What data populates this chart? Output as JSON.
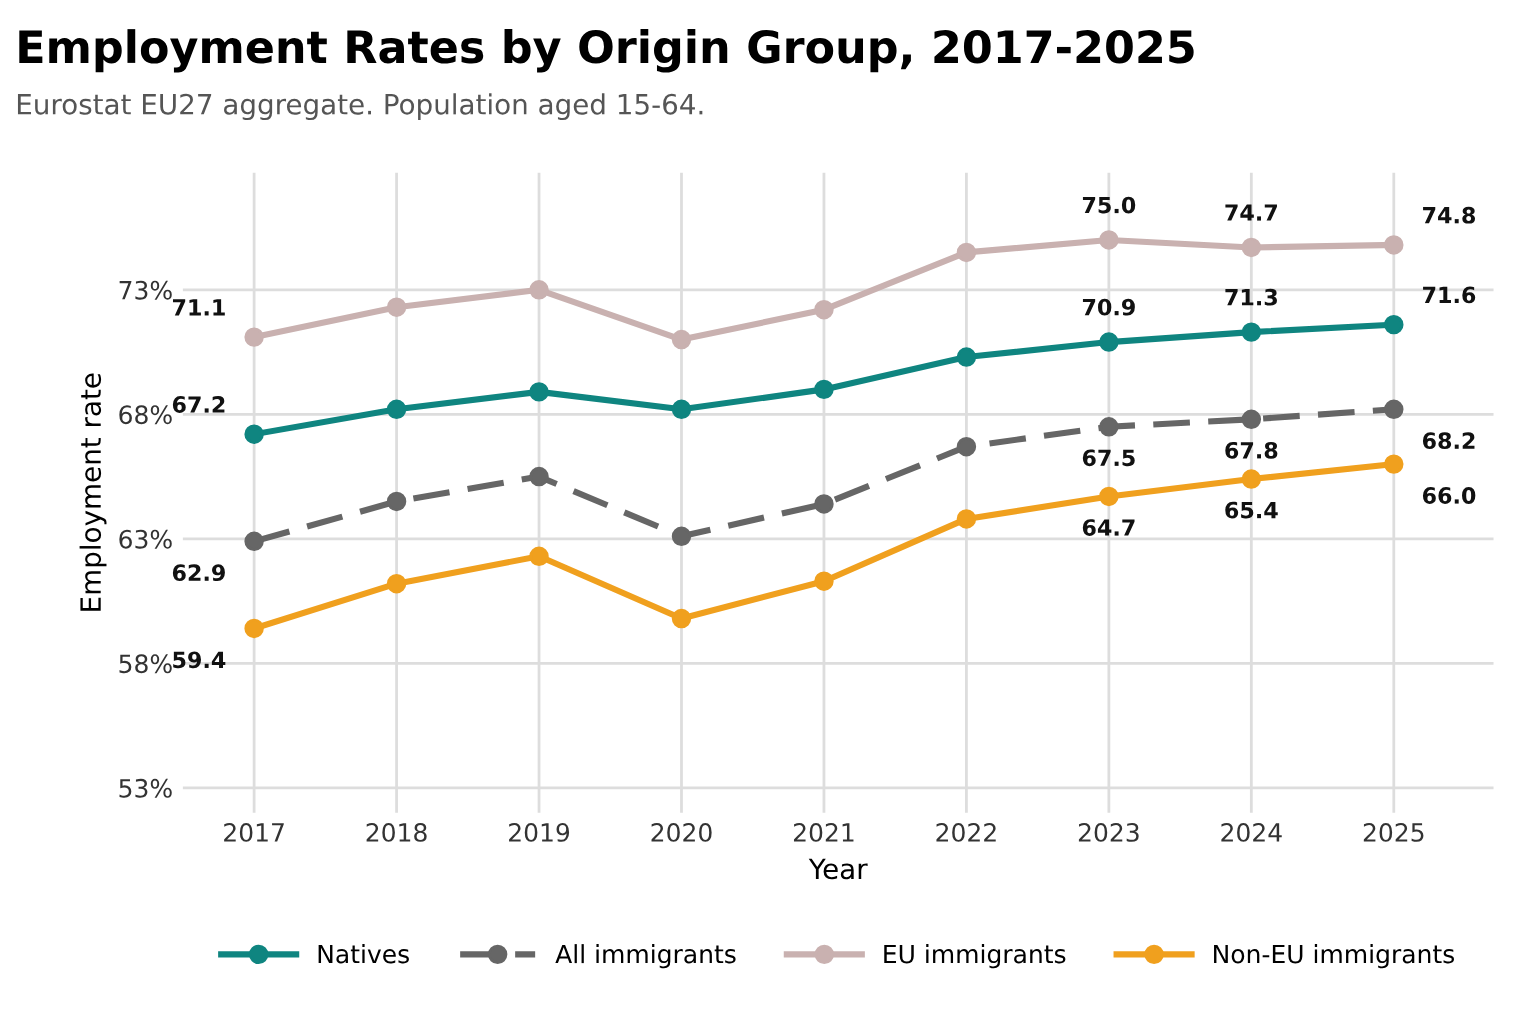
{
  "chart_data": {
    "type": "line",
    "title": "Employment Rates by Origin Group, 2017-2025",
    "subtitle": "Eurostat EU27 aggregate. Population aged 15-64.",
    "xlabel": "Year",
    "ylabel": "Employment rate",
    "categories": [
      "2017",
      "2018",
      "2019",
      "2020",
      "2021",
      "2022",
      "2023",
      "2024",
      "2025"
    ],
    "series": [
      {
        "name": "Natives",
        "color": "#0f8580",
        "values": [
          67.2,
          68.2,
          68.9,
          68.2,
          69.0,
          70.3,
          70.9,
          71.3,
          71.6
        ],
        "value_labels": [
          "67.2",
          null,
          null,
          null,
          null,
          null,
          "70.9",
          "71.3",
          "71.6"
        ]
      },
      {
        "name": "All immigrants",
        "color": "#666666",
        "line_style": "dashed",
        "values": [
          62.9,
          64.5,
          65.5,
          63.1,
          64.4,
          66.7,
          67.5,
          67.8,
          68.2
        ],
        "value_labels": [
          "62.9",
          null,
          null,
          null,
          null,
          null,
          "67.5",
          "67.8",
          "68.2"
        ]
      },
      {
        "name": "EU immigrants",
        "color": "#c9b1b0",
        "values": [
          71.1,
          72.3,
          73.0,
          71.0,
          72.2,
          74.5,
          75.0,
          74.7,
          74.8
        ],
        "value_labels": [
          "71.1",
          null,
          null,
          null,
          null,
          null,
          "75.0",
          "74.7",
          "74.8"
        ]
      },
      {
        "name": "Non-EU immigrants",
        "color": "#f0a01e",
        "values": [
          59.4,
          61.2,
          62.3,
          59.8,
          61.3,
          63.8,
          64.7,
          65.4,
          66.0
        ],
        "value_labels": [
          "59.4",
          null,
          null,
          null,
          null,
          null,
          "64.7",
          "65.4",
          "66.0"
        ]
      }
    ],
    "ylim": [
      52,
      77.7
    ],
    "yticks": [
      {
        "value": 53,
        "label": "53%"
      },
      {
        "value": 58,
        "label": "58%"
      },
      {
        "value": 63,
        "label": "63%"
      },
      {
        "value": 68,
        "label": "68%"
      },
      {
        "value": 73,
        "label": "73%"
      }
    ],
    "grid": true,
    "legend": "bottom",
    "marker": "circle",
    "line_style": "solid"
  }
}
